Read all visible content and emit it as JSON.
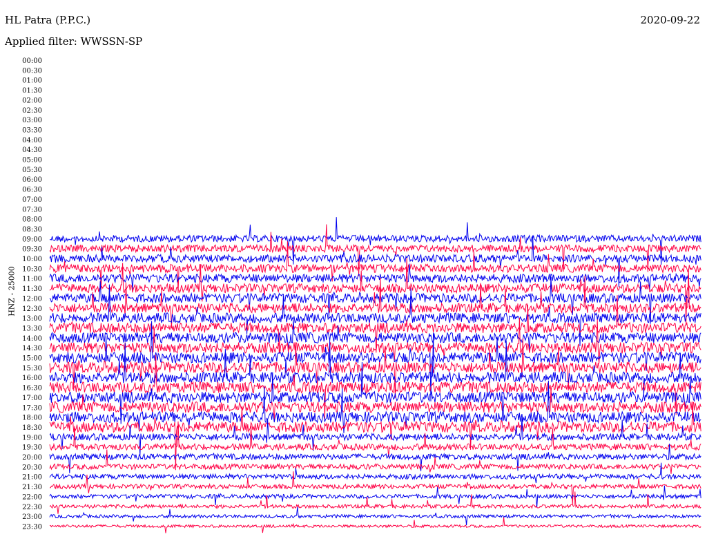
{
  "header": {
    "station": "HL Patra (P.P.C.)",
    "filter": "Applied filter: WWSSN-SP",
    "date": "2020-09-22"
  },
  "chart_data": {
    "type": "line",
    "title": "HL Patra (P.P.C.)",
    "subtitle": "Applied filter: WWSSN-SP",
    "ylabel": "HNZ - 25000",
    "xlabel": "",
    "time_labels": [
      "00:00",
      "00:30",
      "01:00",
      "01:30",
      "02:00",
      "02:30",
      "03:00",
      "03:30",
      "04:00",
      "04:30",
      "05:00",
      "05:30",
      "06:00",
      "06:30",
      "07:00",
      "07:30",
      "08:00",
      "08:30",
      "09:00",
      "09:30",
      "10:00",
      "10:30",
      "11:00",
      "11:30",
      "12:00",
      "12:30",
      "13:00",
      "13:30",
      "14:00",
      "14:30",
      "15:00",
      "15:30",
      "16:00",
      "16:30",
      "17:00",
      "17:30",
      "18:00",
      "18:30",
      "19:00",
      "19:30",
      "20:00",
      "20:30",
      "21:00",
      "21:30",
      "22:00",
      "22:30",
      "23:00",
      "23:30"
    ],
    "first_trace_row": "09:00",
    "row_colors": [
      "#0000ee",
      "#ff0044"
    ],
    "note_colors": {
      "even_rows": "#0000ee",
      "odd_rows": "#ff0044"
    }
  }
}
